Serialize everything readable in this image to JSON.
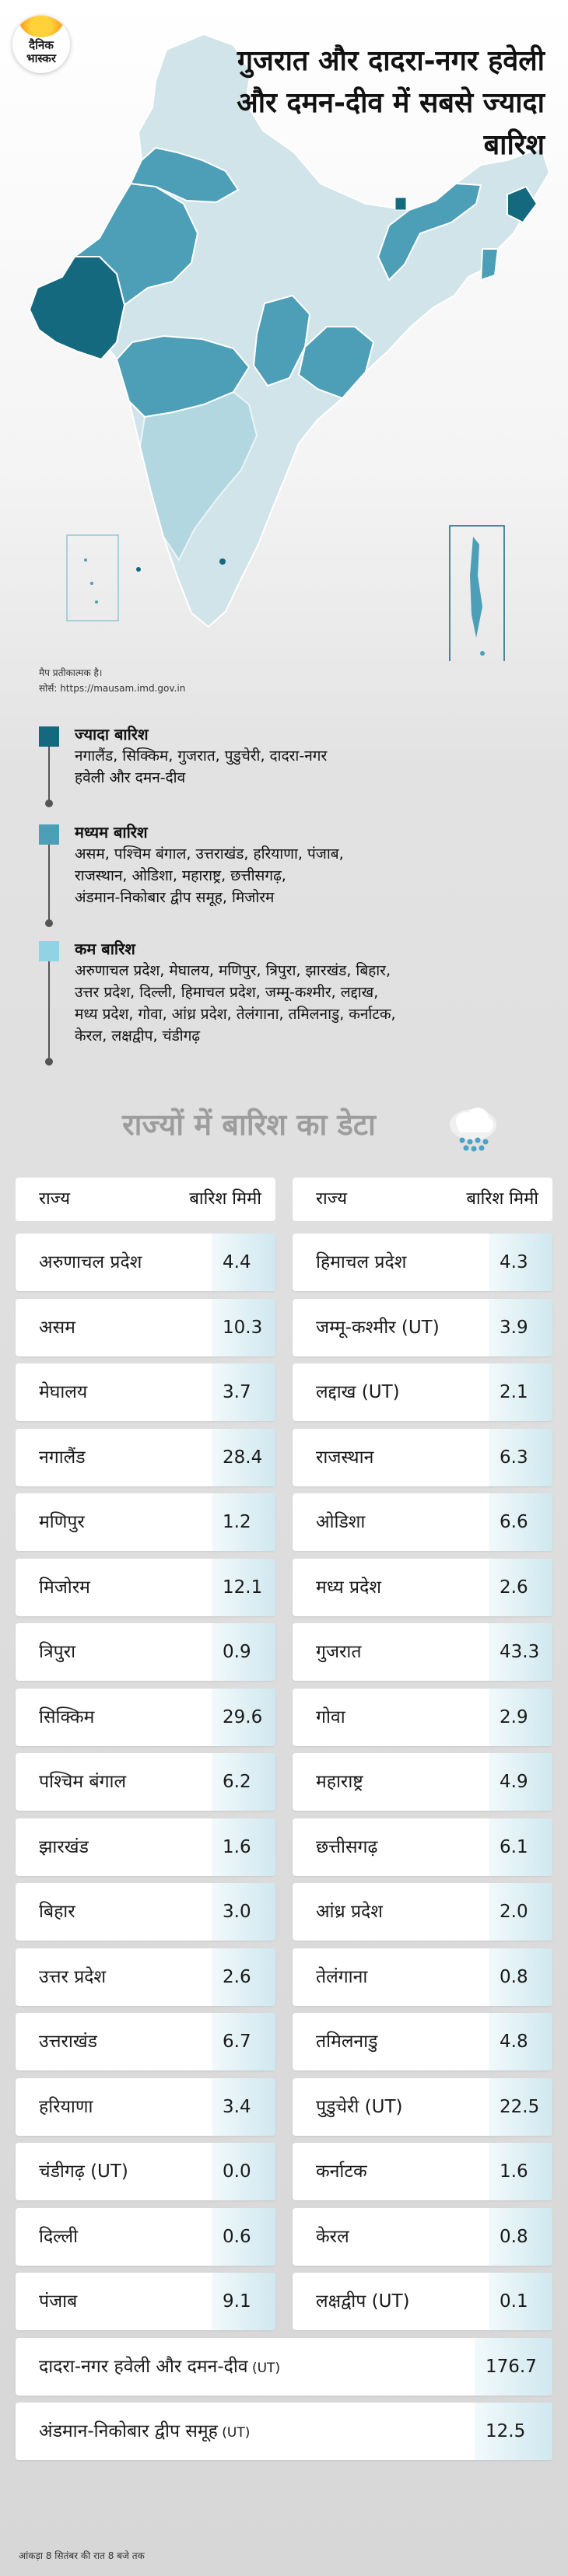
{
  "brand": {
    "logo_line1": "दैनिक",
    "logo_line2": "भास्कर"
  },
  "headline": "गुजरात और दादरा-नगर हवेली और दमन-दीव में सबसे ज्यादा बारिश",
  "map_note": {
    "line1": "मैप प्रतीकात्मक है।",
    "line2": "सोर्स: https://mausam.imd.gov.in"
  },
  "colors": {
    "high": "#15697f",
    "medium": "#4c9fb6",
    "low": "#8fd3e4",
    "map_base": "#d0e4ea"
  },
  "legend": [
    {
      "title": "ज्यादा बारिश",
      "level": "high",
      "lines": [
        "नगालैंड, सिक्किम, गुजरात, पुडुचेरी, दादरा-नगर",
        "हवेली और दमन-दीव"
      ]
    },
    {
      "title": "मध्यम बारिश",
      "level": "medium",
      "lines": [
        "असम, पश्चिम बंगाल, उत्तराखंड, हरियाणा, पंजाब,",
        "राजस्थान, ओडिशा, महाराष्ट्र, छत्तीसगढ़,",
        "अंडमान-निकोबार द्वीप समूह, मिजोरम"
      ]
    },
    {
      "title": "कम बारिश",
      "level": "low",
      "lines": [
        "अरुणाचल प्रदेश, मेघालय, मणिपुर, त्रिपुरा, झारखंड, बिहार,",
        "उत्तर प्रदेश, दिल्ली, हिमाचल प्रदेश, जम्मू-कश्मीर, लद्दाख,",
        "मध्य प्रदेश, गोवा, आंध्र प्रदेश, तेलंगाना, तमिलनाडु, कर्नाटक,",
        "केरल, लक्षद्वीप, चंडीगढ़"
      ]
    }
  ],
  "chart_data": {
    "type": "table",
    "title": "राज्यों में बारिश का डेटा",
    "columns": [
      "राज्य",
      "बारिश मिमी"
    ],
    "left": [
      {
        "state": "अरुणाचल प्रदेश",
        "value": "4.4"
      },
      {
        "state": "असम",
        "value": "10.3"
      },
      {
        "state": "मेघालय",
        "value": "3.7"
      },
      {
        "state": "नगालैंड",
        "value": "28.4"
      },
      {
        "state": "मणिपुर",
        "value": "1.2"
      },
      {
        "state": "मिजोरम",
        "value": "12.1"
      },
      {
        "state": "त्रिपुरा",
        "value": "0.9"
      },
      {
        "state": "सिक्किम",
        "value": "29.6"
      },
      {
        "state": "पश्चिम बंगाल",
        "value": "6.2"
      },
      {
        "state": "झारखंड",
        "value": "1.6"
      },
      {
        "state": "बिहार",
        "value": "3.0"
      },
      {
        "state": "उत्तर प्रदेश",
        "value": "2.6"
      },
      {
        "state": "उत्तराखंड",
        "value": "6.7"
      },
      {
        "state": "हरियाणा",
        "value": "3.4"
      },
      {
        "state": "चंडीगढ़ (UT)",
        "value": "0.0"
      },
      {
        "state": "दिल्ली",
        "value": "0.6"
      },
      {
        "state": "पंजाब",
        "value": "9.1"
      }
    ],
    "right": [
      {
        "state": "हिमाचल प्रदेश",
        "value": "4.3"
      },
      {
        "state": "जम्मू-कश्मीर (UT)",
        "value": "3.9"
      },
      {
        "state": "लद्दाख (UT)",
        "value": "2.1"
      },
      {
        "state": "राजस्थान",
        "value": "6.3"
      },
      {
        "state": "ओडिशा",
        "value": "6.6"
      },
      {
        "state": "मध्य प्रदेश",
        "value": "2.6"
      },
      {
        "state": "गुजरात",
        "value": "43.3"
      },
      {
        "state": "गोवा",
        "value": "2.9"
      },
      {
        "state": "महाराष्ट्र",
        "value": "4.9"
      },
      {
        "state": "छत्तीसगढ़",
        "value": "6.1"
      },
      {
        "state": "आंध्र प्रदेश",
        "value": "2.0"
      },
      {
        "state": "तेलंगाना",
        "value": "0.8"
      },
      {
        "state": "तमिलनाडु",
        "value": "4.8"
      },
      {
        "state": "पुडुचेरी (UT)",
        "value": "22.5"
      },
      {
        "state": "कर्नाटक",
        "value": "1.6"
      },
      {
        "state": "केरल",
        "value": "0.8"
      },
      {
        "state": "लक्षद्वीप (UT)",
        "value": "0.1"
      }
    ],
    "wide": [
      {
        "state": "दादरा-नगर हवेली और दमन-दीव",
        "ut": "(UT)",
        "value": "176.7"
      },
      {
        "state": "अंडमान-निकोबार द्वीप समूह",
        "ut": "(UT)",
        "value": "12.5"
      }
    ]
  },
  "footer": "आंकड़ा 8 सितंबर की रात 8 बजे तक"
}
